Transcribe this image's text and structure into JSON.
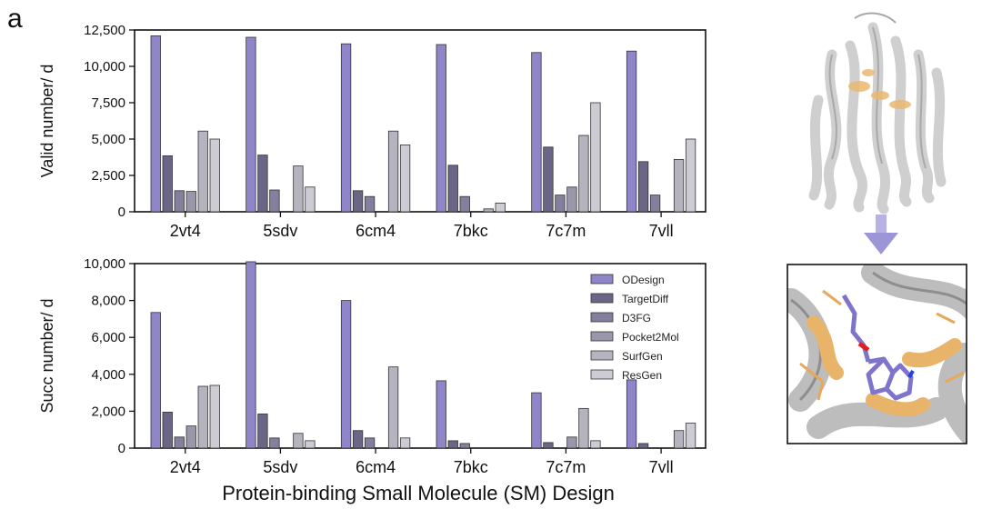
{
  "panel_label": "a",
  "x_label": "Protein-binding Small Molecule (SM) Design",
  "colors": {
    "ODesign": "#8f86c9",
    "TargetDiff": "#6b6685",
    "D3FG": "#837f9c",
    "Pocket2Mol": "#9a97ab",
    "SurfGen": "#b4b3be",
    "ResGen": "#cdcbd4",
    "structure_grey": "#c8c8c8",
    "pocket_orange": "#e9b870",
    "ligand_purple": "#7f74cc",
    "arrow": "#9c95d8"
  },
  "chart_data": [
    {
      "type": "bar",
      "ylabel": "Valid number/ d",
      "ylim": [
        0,
        12500
      ],
      "yticks": [
        "0",
        "2,500",
        "5,000",
        "7,500",
        "10,000",
        "12,500"
      ],
      "ytick_values": [
        0,
        2500,
        5000,
        7500,
        10000,
        12500
      ],
      "categories": [
        "2vt4",
        "5sdv",
        "6cm4",
        "7bkc",
        "7c7m",
        "7vll"
      ],
      "series": [
        {
          "name": "ODesign",
          "values": [
            12100,
            12000,
            11550,
            11500,
            10950,
            11050
          ]
        },
        {
          "name": "TargetDiff",
          "values": [
            3850,
            3900,
            1450,
            3200,
            4450,
            3450
          ]
        },
        {
          "name": "D3FG",
          "values": [
            1450,
            1500,
            1050,
            1050,
            1150,
            1150
          ]
        },
        {
          "name": "Pocket2Mol",
          "values": [
            1400,
            0,
            0,
            0,
            1700,
            0
          ]
        },
        {
          "name": "SurfGen",
          "values": [
            5550,
            3150,
            5550,
            200,
            5250,
            3600
          ]
        },
        {
          "name": "ResGen",
          "values": [
            5000,
            1700,
            4600,
            600,
            7500,
            5000
          ]
        }
      ],
      "grid": false,
      "legend": "none"
    },
    {
      "type": "bar",
      "ylabel": "Succ number/ d",
      "ylim": [
        0,
        10000
      ],
      "yticks": [
        "0",
        "2,000",
        "4,000",
        "6,000",
        "8,000",
        "10,000"
      ],
      "ytick_values": [
        0,
        2000,
        4000,
        6000,
        8000,
        10000
      ],
      "categories": [
        "2vt4",
        "5sdv",
        "6cm4",
        "7bkc",
        "7c7m",
        "7vll"
      ],
      "series": [
        {
          "name": "ODesign",
          "values": [
            7350,
            10100,
            8000,
            3650,
            3000,
            3700
          ]
        },
        {
          "name": "TargetDiff",
          "values": [
            1950,
            1850,
            950,
            400,
            300,
            250
          ]
        },
        {
          "name": "D3FG",
          "values": [
            600,
            550,
            550,
            250,
            0,
            0
          ]
        },
        {
          "name": "Pocket2Mol",
          "values": [
            1200,
            0,
            0,
            0,
            600,
            0
          ]
        },
        {
          "name": "SurfGen",
          "values": [
            3350,
            800,
            4400,
            0,
            2150,
            950
          ]
        },
        {
          "name": "ResGen",
          "values": [
            3400,
            400,
            550,
            0,
            400,
            1350
          ]
        }
      ],
      "grid": false,
      "legend": "top-right"
    }
  ]
}
